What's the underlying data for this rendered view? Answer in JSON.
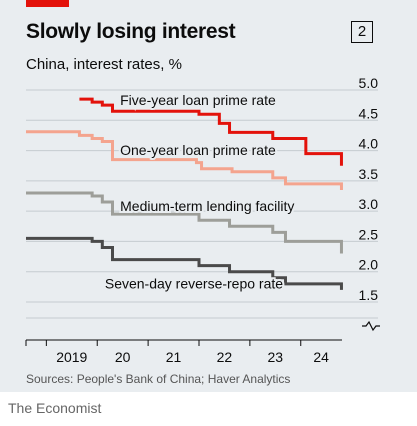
{
  "header": {
    "title": "Slowly losing interest",
    "badge": "2",
    "subtitle": "China, interest rates, %"
  },
  "footer": {
    "source": "Sources: People's Bank of China; Haver Analytics",
    "brand": "The Economist"
  },
  "colors": {
    "background": "#e9edf0",
    "accent": "#e3120b",
    "five_year": "#e3120b",
    "one_year": "#f4a48e",
    "mlf": "#9d9e99",
    "seven_day": "#4a4a4a"
  },
  "chart_data": {
    "type": "line",
    "xlabel": "",
    "ylabel": "",
    "ylim": [
      1.5,
      5.0
    ],
    "xlim": [
      2018.6,
      2024.85
    ],
    "yticks": [
      "5.0",
      "4.5",
      "4.0",
      "3.5",
      "3.0",
      "2.5",
      "2.0",
      "1.5"
    ],
    "xticks": [
      {
        "label": "2019",
        "x": 2019.5
      },
      {
        "label": "20",
        "x": 2020.5
      },
      {
        "label": "21",
        "x": 2021.5
      },
      {
        "label": "22",
        "x": 2022.5
      },
      {
        "label": "23",
        "x": 2023.5
      },
      {
        "label": "24",
        "x": 2024.4
      }
    ],
    "grid": true,
    "axis_break": true,
    "series": [
      {
        "name": "Five-year loan prime rate",
        "color_key": "five_year",
        "step": true,
        "points": [
          [
            2019.65,
            4.85
          ],
          [
            2019.9,
            4.8
          ],
          [
            2020.1,
            4.75
          ],
          [
            2020.3,
            4.65
          ],
          [
            2022.0,
            4.6
          ],
          [
            2022.4,
            4.45
          ],
          [
            2022.6,
            4.3
          ],
          [
            2023.45,
            4.2
          ],
          [
            2024.1,
            3.95
          ],
          [
            2024.4,
            3.95
          ],
          [
            2024.8,
            3.85
          ],
          [
            2024.8,
            3.75
          ]
        ]
      },
      {
        "name": "One-year loan prime rate",
        "color_key": "one_year",
        "step": true,
        "points": [
          [
            2018.6,
            4.31
          ],
          [
            2019.0,
            4.31
          ],
          [
            2019.65,
            4.25
          ],
          [
            2019.9,
            4.2
          ],
          [
            2020.1,
            4.15
          ],
          [
            2020.3,
            4.05
          ],
          [
            2020.3,
            3.85
          ],
          [
            2021.95,
            3.8
          ],
          [
            2022.05,
            3.7
          ],
          [
            2022.65,
            3.65
          ],
          [
            2023.45,
            3.55
          ],
          [
            2023.7,
            3.45
          ],
          [
            2024.4,
            3.45
          ],
          [
            2024.8,
            3.35
          ]
        ]
      },
      {
        "name": "Medium-term lending facility",
        "color_key": "mlf",
        "step": true,
        "points": [
          [
            2018.6,
            3.3
          ],
          [
            2019.9,
            3.25
          ],
          [
            2020.1,
            3.15
          ],
          [
            2020.3,
            2.95
          ],
          [
            2022.0,
            2.85
          ],
          [
            2022.6,
            2.75
          ],
          [
            2023.45,
            2.65
          ],
          [
            2023.7,
            2.5
          ],
          [
            2024.4,
            2.5
          ],
          [
            2024.8,
            2.3
          ]
        ]
      },
      {
        "name": "Seven-day reverse-repo rate",
        "color_key": "seven_day",
        "step": true,
        "points": [
          [
            2018.6,
            2.55
          ],
          [
            2019.9,
            2.5
          ],
          [
            2020.1,
            2.4
          ],
          [
            2020.3,
            2.2
          ],
          [
            2022.0,
            2.1
          ],
          [
            2022.6,
            2.0
          ],
          [
            2023.45,
            1.9
          ],
          [
            2023.7,
            1.8
          ],
          [
            2024.4,
            1.8
          ],
          [
            2024.8,
            1.7
          ]
        ]
      }
    ],
    "labels": [
      {
        "text": "Five-year loan prime rate",
        "x": 2020.45,
        "y": 4.75
      },
      {
        "text": "One-year loan prime rate",
        "x": 2020.45,
        "y": 3.93
      },
      {
        "text": "Medium-term lending facility",
        "x": 2020.45,
        "y": 3.0
      },
      {
        "text": "Seven-day reverse-repo rate",
        "x": 2020.15,
        "y": 1.72
      }
    ]
  }
}
